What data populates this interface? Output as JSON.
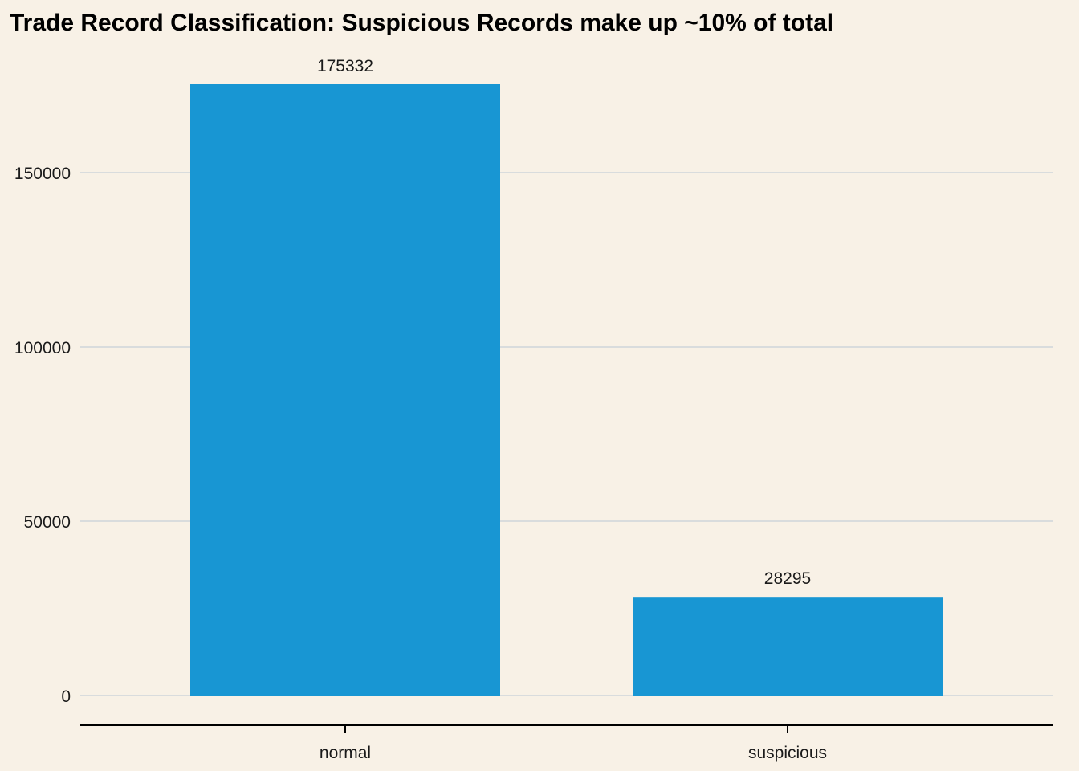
{
  "chart_data": {
    "type": "bar",
    "title": "Trade Record Classification: Suspicious Records make up ~10% of total",
    "xlabel": "",
    "ylabel": "",
    "categories": [
      "normal",
      "suspicious"
    ],
    "values": [
      175332,
      28295
    ],
    "data_labels": [
      "175332",
      "28295"
    ],
    "ylim": [
      0,
      175332
    ],
    "yticks": [
      0,
      50000,
      100000,
      150000
    ],
    "ytick_labels": [
      "0",
      "50000",
      "100000",
      "150000"
    ],
    "grid": "horizontal",
    "legend": "none",
    "colors": {
      "bar": "#1896D3",
      "background": "#F8F1E6",
      "grid": "#D9DCDD",
      "axis": "#000000"
    }
  }
}
